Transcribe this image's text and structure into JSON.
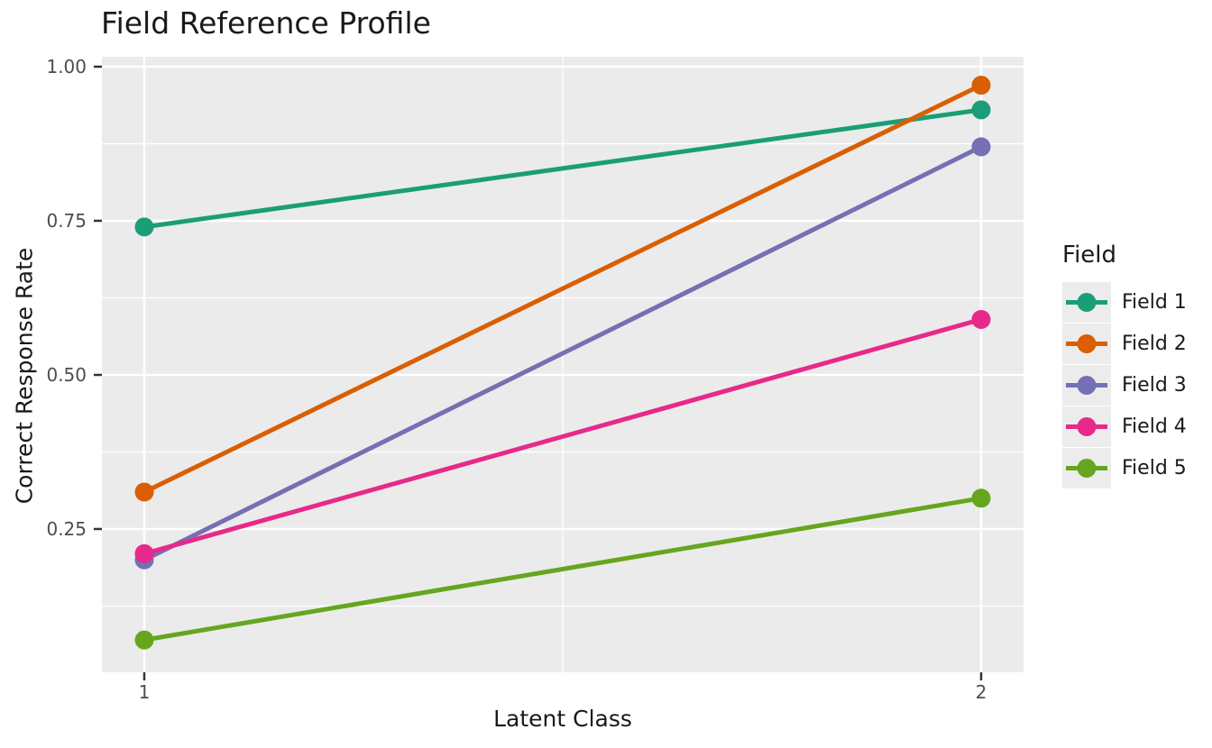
{
  "title": "Field Reference Profile",
  "axes": {
    "x": {
      "label": "Latent Class",
      "tick_labels": [
        "1",
        "2"
      ]
    },
    "y": {
      "label": "Correct Response Rate",
      "tick_labels": [
        "1.00",
        "0.75",
        "0.50",
        "0.25"
      ]
    }
  },
  "legend": {
    "title": "Field",
    "entries": [
      {
        "label": "Field 1",
        "color": "#1B9E77"
      },
      {
        "label": "Field 2",
        "color": "#D95F02"
      },
      {
        "label": "Field 3",
        "color": "#7570B3"
      },
      {
        "label": "Field 4",
        "color": "#E7298A"
      },
      {
        "label": "Field 5",
        "color": "#66A61E"
      }
    ]
  },
  "chart_data": {
    "type": "line",
    "title": "Field Reference Profile",
    "xlabel": "Latent Class",
    "ylabel": "Correct Response Rate",
    "categories": [
      1,
      2
    ],
    "xticks": [
      1,
      2
    ],
    "yticks": [
      1.0,
      0.75,
      0.5,
      0.25
    ],
    "xlim": [
      0.949,
      2.051
    ],
    "ylim": [
      0.018,
      1.016
    ],
    "grid": true,
    "legend_title": "Field",
    "legend_position": "right",
    "series": [
      {
        "name": "Field 1",
        "color": "#1B9E77",
        "values": [
          0.74,
          0.93
        ]
      },
      {
        "name": "Field 2",
        "color": "#D95F02",
        "values": [
          0.31,
          0.97
        ]
      },
      {
        "name": "Field 3",
        "color": "#7570B3",
        "values": [
          0.2,
          0.87
        ]
      },
      {
        "name": "Field 4",
        "color": "#E7298A",
        "values": [
          0.21,
          0.59
        ]
      },
      {
        "name": "Field 5",
        "color": "#66A61E",
        "values": [
          0.07,
          0.3
        ]
      }
    ],
    "style": {
      "panel_bg": "#EBEBEB",
      "grid_color": "#FFFFFF",
      "tick_color": "#333333",
      "tick_text_color": "#4D4D4D",
      "line_width": 5,
      "point_radius": 10.5
    }
  }
}
